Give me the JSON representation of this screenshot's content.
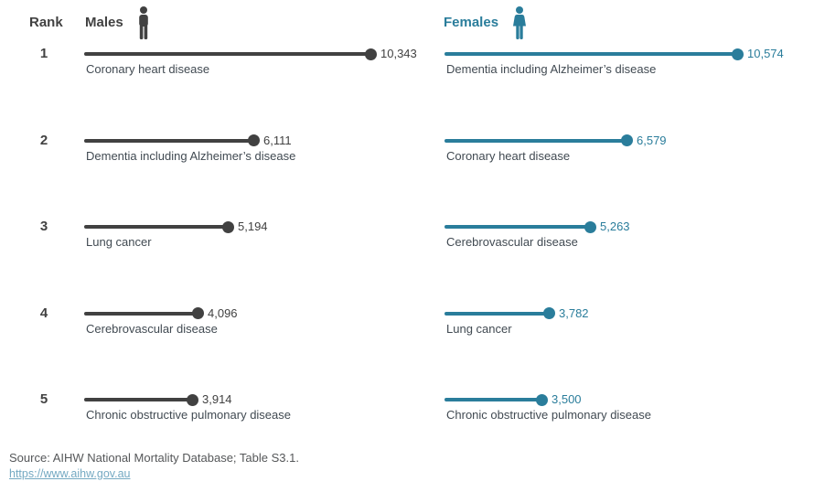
{
  "header": {
    "rank_label": "Rank",
    "males_label": "Males",
    "females_label": "Females"
  },
  "footer": {
    "source": "Source: AIHW National Mortality Database; Table S3.1.",
    "link": "https://www.aihw.gov.au"
  },
  "colors": {
    "male": "#414141",
    "female": "#2a7d9b",
    "cause_label": "#414a52",
    "source_text": "#555759",
    "link": "#74a9c2"
  },
  "chart_data": {
    "type": "bar",
    "subtype": "paired-lollipop-ranking",
    "title": "Leading causes of death by sex (number of deaths), ranked 1 to 5",
    "legend": [
      "Males",
      "Females"
    ],
    "value_axis": {
      "min": 0,
      "max_visible_value": 10574,
      "gridlines": false
    },
    "rows": [
      {
        "rank": "1",
        "male": {
          "cause": "Coronary heart disease",
          "value": 10343,
          "display": "10,343"
        },
        "female": {
          "cause": "Dementia including Alzheimer’s disease",
          "value": 10574,
          "display": "10,574"
        }
      },
      {
        "rank": "2",
        "male": {
          "cause": "Dementia including Alzheimer’s disease",
          "value": 6111,
          "display": "6,111"
        },
        "female": {
          "cause": "Coronary heart disease",
          "value": 6579,
          "display": "6,579"
        }
      },
      {
        "rank": "3",
        "male": {
          "cause": "Lung cancer",
          "value": 5194,
          "display": "5,194"
        },
        "female": {
          "cause": "Cerebrovascular disease",
          "value": 5263,
          "display": "5,263"
        }
      },
      {
        "rank": "4",
        "male": {
          "cause": "Cerebrovascular disease",
          "value": 4096,
          "display": "4,096"
        },
        "female": {
          "cause": "Lung cancer",
          "value": 3782,
          "display": "3,782"
        }
      },
      {
        "rank": "5",
        "male": {
          "cause": "Chronic obstructive pulmonary disease",
          "value": 3914,
          "display": "3,914"
        },
        "female": {
          "cause": "Chronic obstructive pulmonary disease",
          "value": 3500,
          "display": "3,500"
        }
      }
    ]
  }
}
